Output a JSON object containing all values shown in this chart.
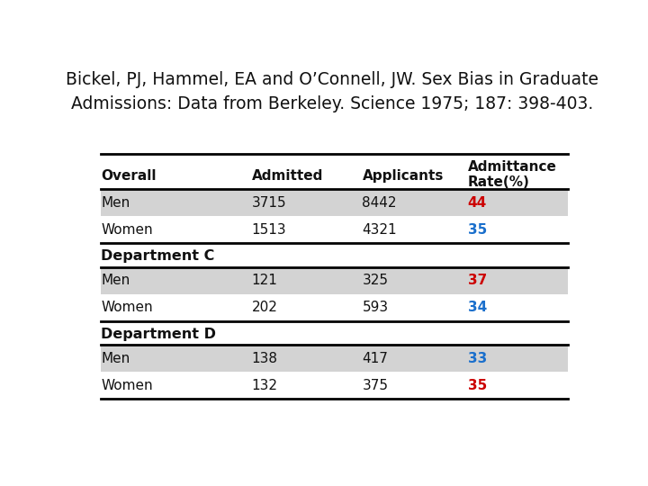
{
  "title_line1": "Bickel, PJ, Hammel, EA and O’Connell, JW. Sex Bias in Graduate",
  "title_line2": "Admissions: Data from Berkeley. Science 1975; 187: 398-403.",
  "background_color": "#ffffff",
  "row_bg_odd": "#d3d3d3",
  "row_bg_even": "#ffffff",
  "header_row": [
    "Overall",
    "Admitted",
    "Applicants",
    "Admittance\nRate(%)"
  ],
  "sections": [
    {
      "label": null,
      "rows": [
        {
          "group": "Men",
          "admitted": "3715",
          "applicants": "8442",
          "rate": "44",
          "rate_color": "#cc0000"
        },
        {
          "group": "Women",
          "admitted": "1513",
          "applicants": "4321",
          "rate": "35",
          "rate_color": "#1a6fcc"
        }
      ]
    },
    {
      "label": "Department C",
      "rows": [
        {
          "group": "Men",
          "admitted": "121",
          "applicants": "325",
          "rate": "37",
          "rate_color": "#cc0000"
        },
        {
          "group": "Women",
          "admitted": "202",
          "applicants": "593",
          "rate": "34",
          "rate_color": "#1a6fcc"
        }
      ]
    },
    {
      "label": "Department D",
      "rows": [
        {
          "group": "Men",
          "admitted": "138",
          "applicants": "417",
          "rate": "33",
          "rate_color": "#1a6fcc"
        },
        {
          "group": "Women",
          "admitted": "132",
          "applicants": "375",
          "rate": "35",
          "rate_color": "#cc0000"
        }
      ]
    }
  ]
}
